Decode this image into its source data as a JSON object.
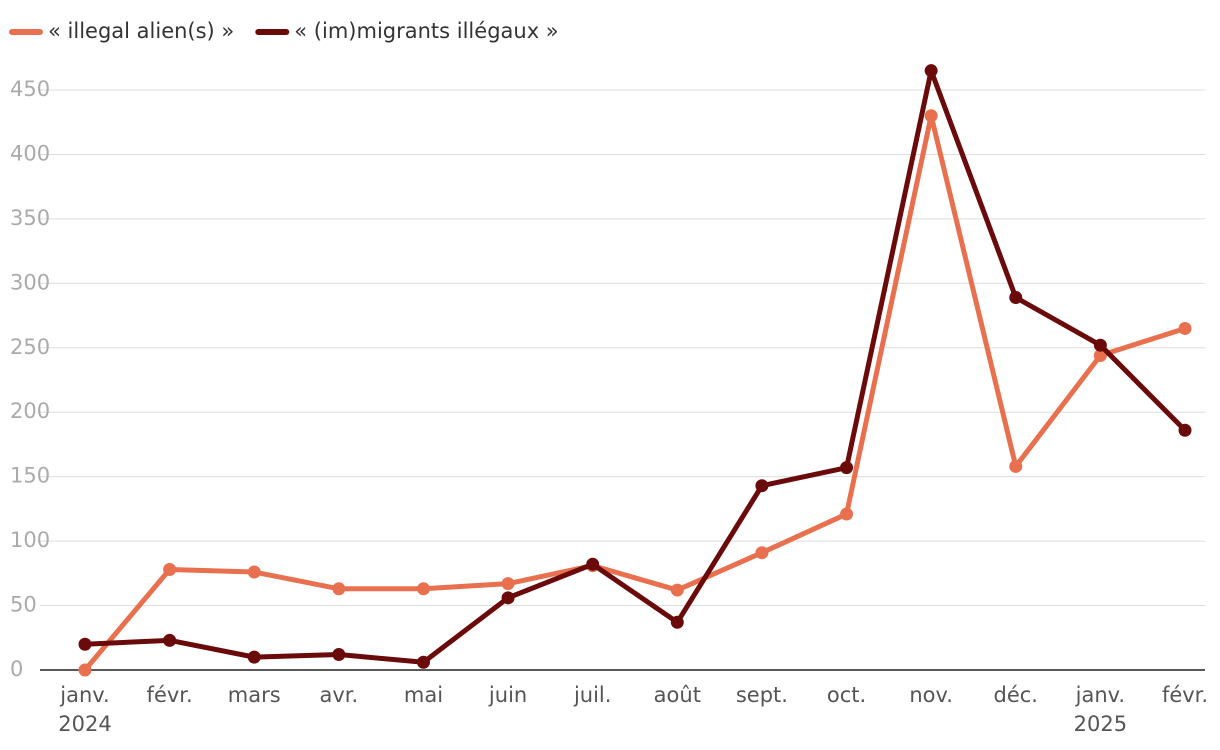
{
  "chart_data": {
    "type": "line",
    "categories": [
      "janv. 2024",
      "févr.",
      "mars",
      "avr.",
      "mai",
      "juin",
      "juil.",
      "août",
      "sept.",
      "oct.",
      "nov.",
      "déc.",
      "janv. 2025",
      "févr."
    ],
    "series": [
      {
        "name": "« illegal alien(s) »",
        "color": "#e8704f",
        "values": [
          0,
          78,
          76,
          63,
          63,
          67,
          81,
          62,
          91,
          121,
          430,
          158,
          244,
          265
        ]
      },
      {
        "name": "« (im)migrants illégaux »",
        "color": "#6b0a0a",
        "values": [
          20,
          23,
          10,
          12,
          6,
          56,
          82,
          37,
          143,
          157,
          465,
          289,
          252,
          186
        ]
      }
    ],
    "ylim": [
      0,
      450
    ],
    "yticks": [
      0,
      50,
      100,
      150,
      200,
      250,
      300,
      350,
      400,
      450
    ],
    "grid": true,
    "legend": "top-left"
  }
}
